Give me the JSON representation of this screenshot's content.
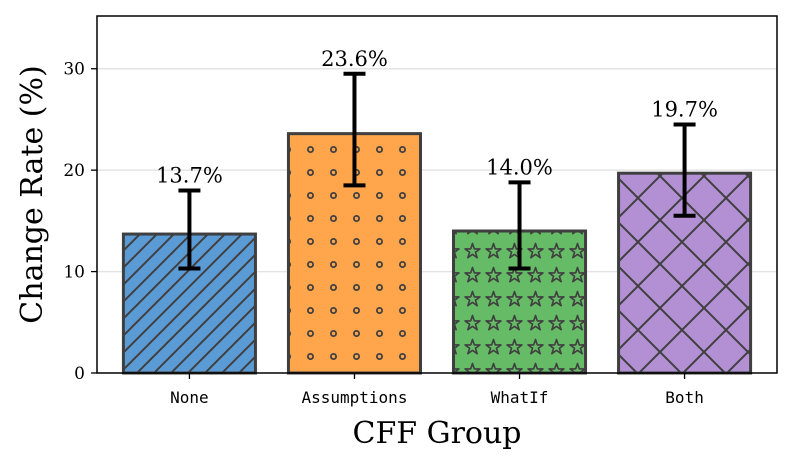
{
  "chart_data": {
    "type": "bar",
    "title": "",
    "xlabel": "CFF Group",
    "ylabel": "Change Rate (%)",
    "categories": [
      "None",
      "Assumptions",
      "WhatIf",
      "Both"
    ],
    "values": [
      13.7,
      23.6,
      14.0,
      19.7
    ],
    "data_labels": [
      "13.7%",
      "23.6%",
      "14.0%",
      "19.7%"
    ],
    "error_low": [
      10.3,
      18.5,
      10.3,
      15.5
    ],
    "error_high": [
      18.0,
      29.5,
      18.8,
      24.5
    ],
    "ylim": [
      0,
      35.2
    ],
    "yticks": [
      0,
      10,
      20,
      30
    ],
    "grid": true,
    "colors": [
      "#5b9bd5",
      "#ffa64d",
      "#66bb66",
      "#b290d3"
    ],
    "edge_color": "#3f3f3f",
    "hatches": [
      "diagonal",
      "dots",
      "stars",
      "crosshatch"
    ]
  }
}
